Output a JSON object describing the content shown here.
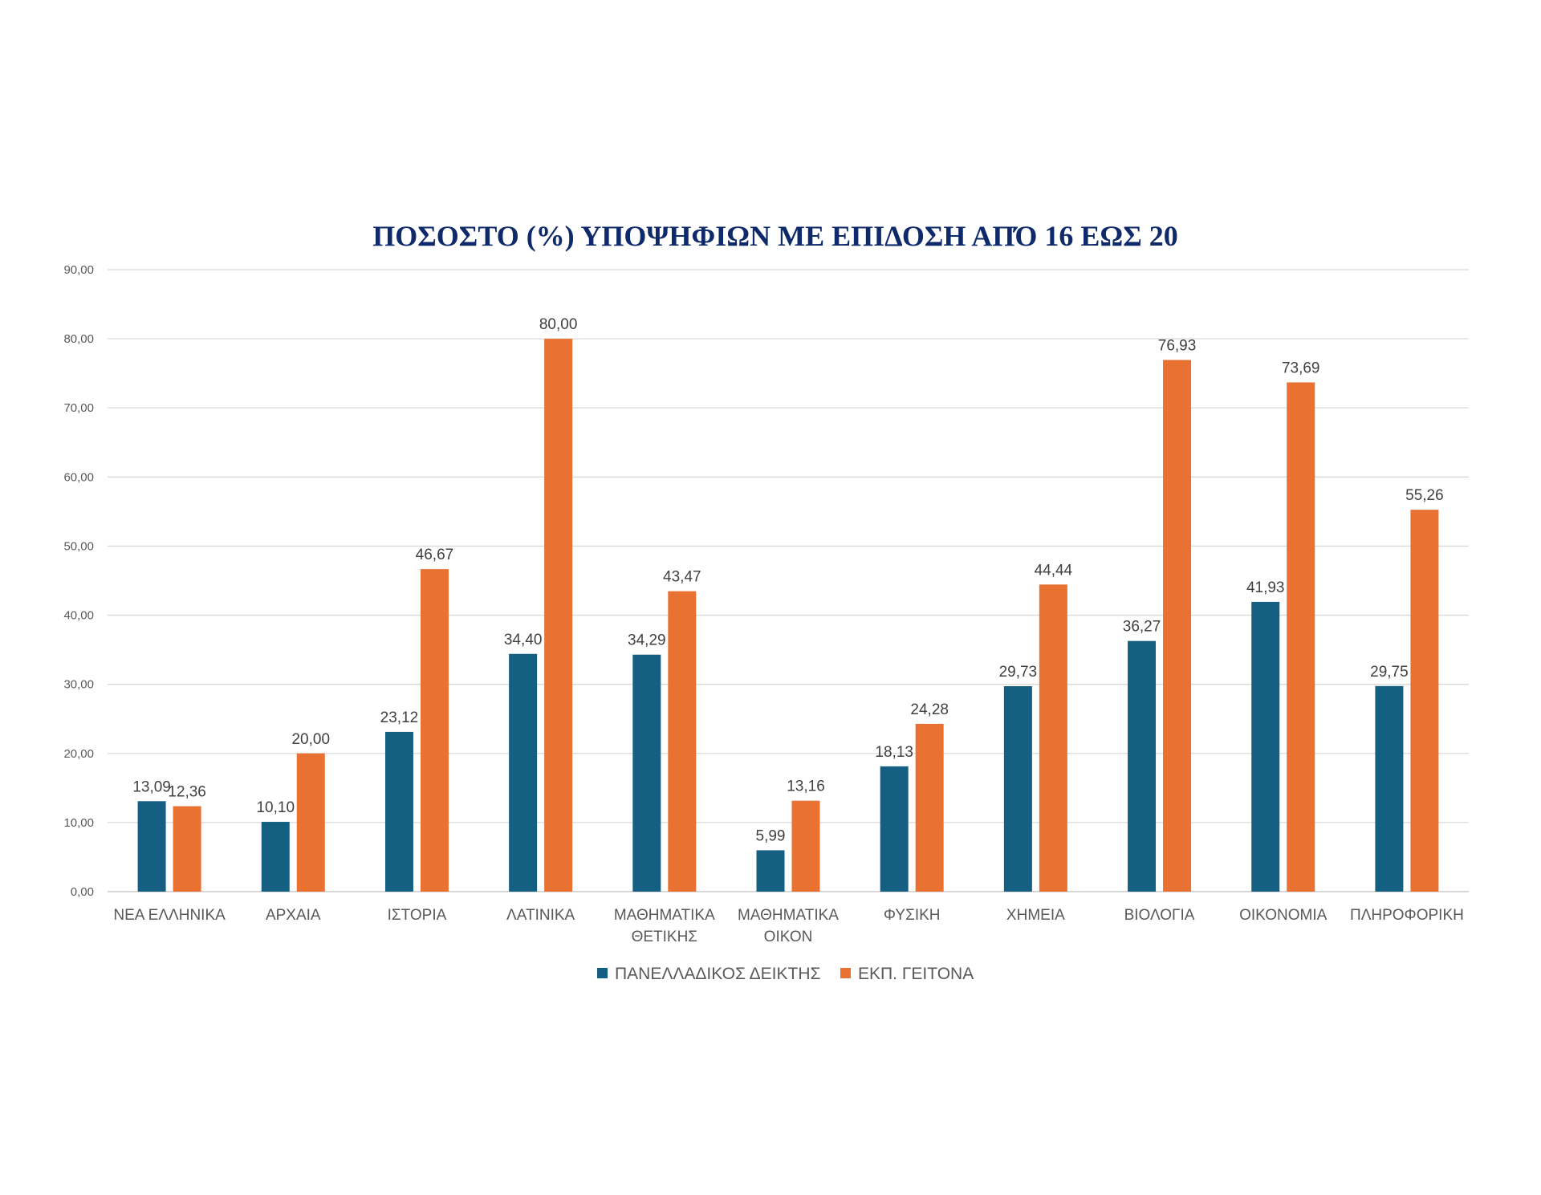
{
  "chart_data": {
    "type": "bar",
    "title": "ΠΟΣΟΣΤΟ (%) ΥΠΟΨΗΦΙΩΝ ΜΕ ΕΠΙΔΟΣΗ ΑΠΌ 16 ΕΩΣ 20",
    "xlabel": "",
    "ylabel": "",
    "ylim": [
      0,
      90
    ],
    "yticks": [
      0,
      10,
      20,
      30,
      40,
      50,
      60,
      70,
      80,
      90
    ],
    "ytick_labels": [
      "0,00",
      "10,00",
      "20,00",
      "30,00",
      "40,00",
      "50,00",
      "60,00",
      "70,00",
      "80,00",
      "90,00"
    ],
    "grid": "horizontal",
    "legend_position": "bottom",
    "categories": [
      [
        "ΝΕΑ ΕΛΛΗΝΙΚΑ"
      ],
      [
        "ΑΡΧΑΙΑ"
      ],
      [
        "ΙΣΤΟΡΙΑ"
      ],
      [
        "ΛΑΤΙΝΙΚΑ"
      ],
      [
        "ΜΑΘΗΜΑΤΙΚΑ",
        "ΘΕΤΙΚΗΣ"
      ],
      [
        "ΜΑΘΗΜΑΤΙΚΑ",
        "ΟΙΚΟΝ"
      ],
      [
        "ΦΥΣΙΚΗ"
      ],
      [
        "ΧΗΜΕΙΑ"
      ],
      [
        "ΒΙΟΛΟΓΙΑ"
      ],
      [
        "ΟΙΚΟΝΟΜΙΑ"
      ],
      [
        "ΠΛΗΡΟΦΟΡΙΚΗ"
      ]
    ],
    "series": [
      {
        "name": "ΠΑΝΕΛΛΑΔΙΚΟΣ ΔΕΙΚΤΗΣ",
        "color": "#156082",
        "values": [
          13.09,
          10.1,
          23.12,
          34.4,
          34.29,
          5.99,
          18.13,
          29.73,
          36.27,
          41.93,
          29.75
        ],
        "labels": [
          "13,09",
          "10,10",
          "23,12",
          "34,40",
          "34,29",
          "5,99",
          "18,13",
          "29,73",
          "36,27",
          "41,93",
          "29,75"
        ]
      },
      {
        "name": "ΕΚΠ. ΓΕΙΤΟΝΑ",
        "color": "#E97132",
        "values": [
          12.36,
          20.0,
          46.67,
          80.0,
          43.47,
          13.16,
          24.28,
          44.44,
          76.93,
          73.69,
          55.26
        ],
        "labels": [
          "12,36",
          "20,00",
          "46,67",
          "80,00",
          "43,47",
          "13,16",
          "24,28",
          "44,44",
          "76,93",
          "73,69",
          "55,26"
        ]
      }
    ],
    "colors": {
      "title": "#0E2A6B",
      "grid": "#D9D9D9",
      "axis": "#BFBFBF"
    }
  }
}
